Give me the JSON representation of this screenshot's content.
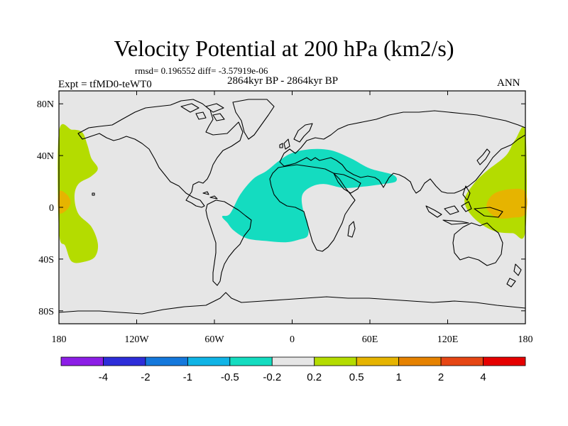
{
  "chart_data": {
    "type": "heatmap",
    "title": "Velocity Potential at 200 hPa (km2/s)",
    "stats": "rmsd= 0.196552 diff= -3.57919e-06",
    "experiment": "Expt = tfMD0-teWT0",
    "period": "2864kyr BP - 2864kyr BP",
    "season": "ANN",
    "x_range": [
      -180,
      180
    ],
    "y_range": [
      -90,
      90
    ],
    "x_ticks": [
      {
        "value": -180,
        "label": "180"
      },
      {
        "value": -120,
        "label": "120W"
      },
      {
        "value": -60,
        "label": "60W"
      },
      {
        "value": 0,
        "label": "0"
      },
      {
        "value": 60,
        "label": "60E"
      },
      {
        "value": 120,
        "label": "120E"
      },
      {
        "value": 180,
        "label": "180"
      }
    ],
    "y_ticks": [
      {
        "value": 80,
        "label": "80N"
      },
      {
        "value": 40,
        "label": "40N"
      },
      {
        "value": 0,
        "label": "0"
      },
      {
        "value": -40,
        "label": "40S"
      },
      {
        "value": -80,
        "label": "80S"
      }
    ],
    "colorbar": {
      "colors": [
        "#8c1ee6",
        "#2d2dd9",
        "#1478dc",
        "#10b4e6",
        "#14dcc0",
        "#e6e6e6",
        "#b4dc00",
        "#e6b400",
        "#e68200",
        "#e64614",
        "#e60000"
      ],
      "labels": [
        "-4",
        "-2",
        "-1",
        "-0.5",
        "-0.2",
        "0.2",
        "0.5",
        "1",
        "2",
        "4"
      ]
    },
    "background_color": "#e6e6e6",
    "regions": [
      {
        "name": "negative-region-atlantic-africa",
        "level": "-0.5 to -0.2",
        "color": "#14dcc0",
        "lonlat": [
          [
            -48,
            -5
          ],
          [
            -40,
            10
          ],
          [
            -30,
            22
          ],
          [
            -20,
            28
          ],
          [
            -10,
            36
          ],
          [
            0,
            42
          ],
          [
            15,
            45
          ],
          [
            30,
            44
          ],
          [
            45,
            38
          ],
          [
            60,
            30
          ],
          [
            78,
            25
          ],
          [
            80,
            20
          ],
          [
            70,
            18
          ],
          [
            55,
            16
          ],
          [
            40,
            15
          ],
          [
            25,
            18
          ],
          [
            15,
            16
          ],
          [
            8,
            10
          ],
          [
            8,
            0
          ],
          [
            12,
            -12
          ],
          [
            12,
            -22
          ],
          [
            5,
            -25
          ],
          [
            -5,
            -27
          ],
          [
            -20,
            -26
          ],
          [
            -35,
            -24
          ],
          [
            -45,
            -18
          ],
          [
            -50,
            -12
          ],
          [
            -54,
            -7
          ]
        ]
      },
      {
        "name": "positive-region-pacific-west",
        "level": "0.2 to 0.5",
        "color": "#b4dc00",
        "lonlat": [
          [
            -180,
            58
          ],
          [
            -170,
            60
          ],
          [
            -162,
            58
          ],
          [
            -158,
            48
          ],
          [
            -155,
            38
          ],
          [
            -150,
            30
          ],
          [
            -155,
            24
          ],
          [
            -165,
            18
          ],
          [
            -168,
            8
          ],
          [
            -165,
            -5
          ],
          [
            -155,
            -15
          ],
          [
            -150,
            -28
          ],
          [
            -152,
            -38
          ],
          [
            -160,
            -42
          ],
          [
            -170,
            -42
          ],
          [
            -175,
            -30
          ],
          [
            -180,
            -18
          ]
        ]
      },
      {
        "name": "positive-region-pacific-east",
        "level": "0.2 to 0.5",
        "color": "#b4dc00",
        "lonlat": [
          [
            180,
            58
          ],
          [
            172,
            52
          ],
          [
            165,
            40
          ],
          [
            150,
            28
          ],
          [
            140,
            18
          ],
          [
            133,
            5
          ],
          [
            140,
            -8
          ],
          [
            155,
            -18
          ],
          [
            170,
            -20
          ],
          [
            180,
            -18
          ]
        ]
      },
      {
        "name": "stronger-region-pacific-west",
        "level": "0.5 to 1",
        "color": "#e6b400",
        "lonlat": [
          [
            -180,
            12
          ],
          [
            -174,
            10
          ],
          [
            -171,
            4
          ],
          [
            -174,
            -2
          ],
          [
            -180,
            -4
          ]
        ]
      },
      {
        "name": "stronger-region-pacific-east",
        "level": "0.5 to 1",
        "color": "#e6b400",
        "lonlat": [
          [
            180,
            12
          ],
          [
            168,
            14
          ],
          [
            155,
            10
          ],
          [
            150,
            0
          ],
          [
            158,
            -8
          ],
          [
            170,
            -8
          ],
          [
            180,
            -5
          ]
        ]
      }
    ]
  }
}
